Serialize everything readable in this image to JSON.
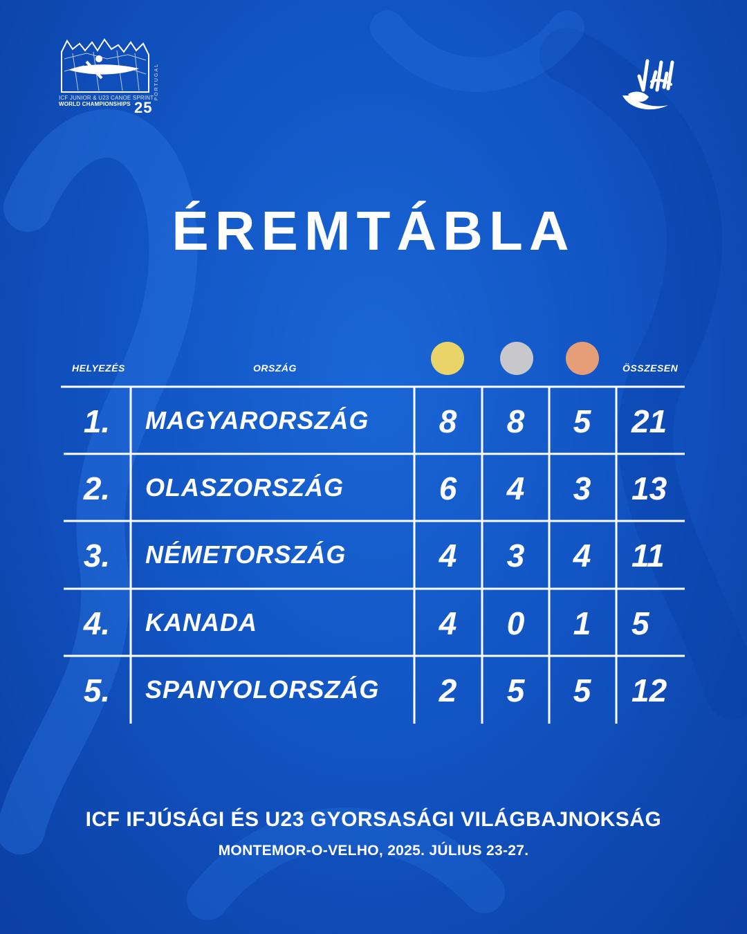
{
  "logo_left": {
    "caption_line1": "ICF JUNIOR & U23 CANOE SPRINT",
    "caption_line2": "WORLD CHAMPIONSHIPS",
    "year": "25",
    "country": "PORTUGAL"
  },
  "title": "ÉREMTÁBLA",
  "table": {
    "headers": {
      "rank": "HELYEZÉS",
      "country": "ORSZÁG",
      "total": "ÖSSZESEN"
    },
    "medal_colors": {
      "gold": "#e8d468",
      "silver": "#c8c8cc",
      "bronze": "#e59e77"
    },
    "rows": [
      {
        "rank": "1.",
        "country": "MAGYARORSZÁG",
        "gold": "8",
        "silver": "8",
        "bronze": "5",
        "total": "21"
      },
      {
        "rank": "2.",
        "country": "OLASZORSZÁG",
        "gold": "6",
        "silver": "4",
        "bronze": "3",
        "total": "13"
      },
      {
        "rank": "3.",
        "country": "NÉMETORSZÁG",
        "gold": "4",
        "silver": "3",
        "bronze": "4",
        "total": "11"
      },
      {
        "rank": "4.",
        "country": "KANADA",
        "gold": "4",
        "silver": "0",
        "bronze": "1",
        "total": "5"
      },
      {
        "rank": "5.",
        "country": "SPANYOLORSZÁG",
        "gold": "2",
        "silver": "5",
        "bronze": "5",
        "total": "12"
      }
    ]
  },
  "footer": {
    "event": "ICF IFJÚSÁGI ÉS U23 GYORSASÁGI VILÁGBAJNOKSÁG",
    "place_date": "MONTEMOR-O-VELHO, 2025. JÚLIUS 23-27."
  }
}
